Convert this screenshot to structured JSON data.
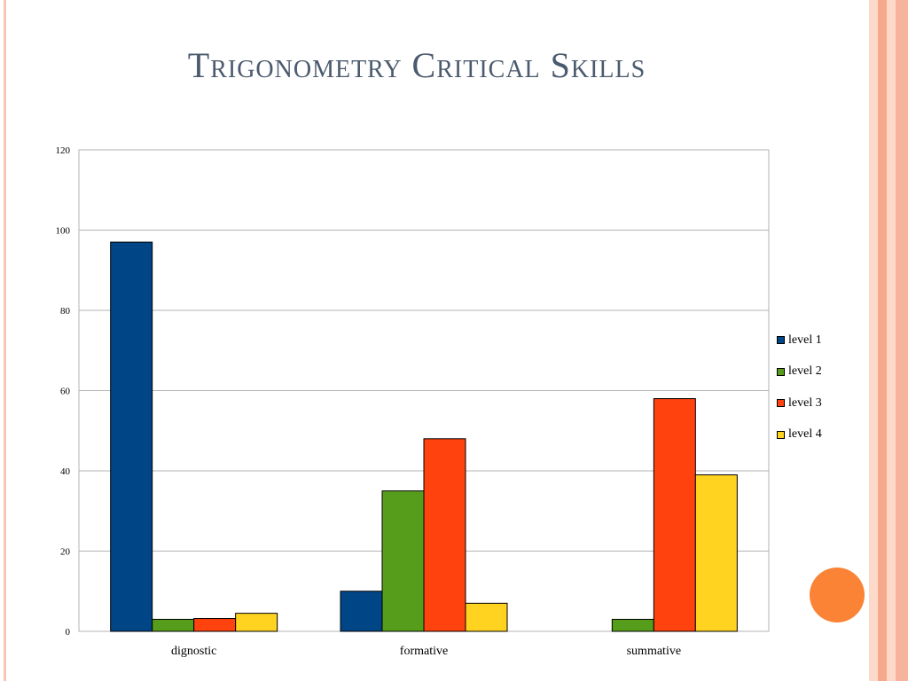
{
  "slide": {
    "title": "Trigonometry Critical Skills",
    "accent_color": "#fa8336",
    "frame_colors": [
      "#fcd9c9",
      "#f7a98d",
      "#fcd9c9",
      "#f5b49b"
    ]
  },
  "chart_data": {
    "type": "bar",
    "title": "",
    "xlabel": "",
    "ylabel": "",
    "categories": [
      "dignostic",
      "formative",
      "summative"
    ],
    "series": [
      {
        "name": "level 1",
        "color": "#004586",
        "values": [
          97,
          10,
          0
        ]
      },
      {
        "name": "level 2",
        "color": "#579d1c",
        "values": [
          3,
          35,
          3
        ]
      },
      {
        "name": "level 3",
        "color": "#ff420e",
        "values": [
          3.2,
          48,
          58
        ]
      },
      {
        "name": "level 4",
        "color": "#ffd320",
        "values": [
          4.5,
          7,
          39
        ]
      }
    ],
    "ylim": [
      0,
      120
    ],
    "yticks": [
      "0",
      "20",
      "40",
      "60",
      "80",
      "100",
      "120"
    ],
    "grid": true,
    "legend_position": "right"
  }
}
